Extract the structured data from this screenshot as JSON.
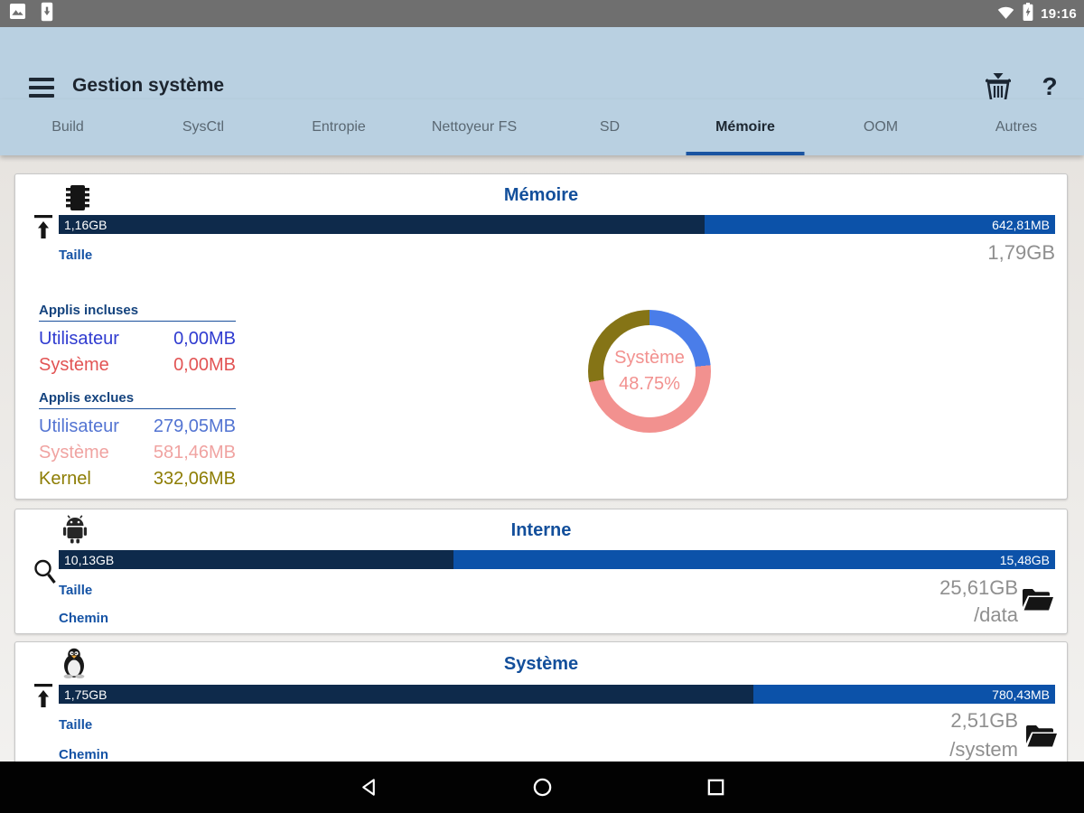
{
  "status_bar": {
    "time": "19:16",
    "left_icons": [
      "image-notification-icon",
      "usb-phone-notification-icon"
    ],
    "right_icons": [
      "wifi-icon",
      "battery-charging-icon"
    ]
  },
  "app_bar": {
    "title": "Gestion système",
    "help_label": "?",
    "actions": [
      "clean-basket-icon",
      "help-icon"
    ]
  },
  "tabs": {
    "items": [
      "Build",
      "SysCtl",
      "Entropie",
      "Nettoyeur FS",
      "SD",
      "Mémoire",
      "OOM",
      "Autres"
    ],
    "active": "Mémoire",
    "active_index": 5,
    "underline_color": "#1a54a1"
  },
  "cards": [
    {
      "title": "Mémoire",
      "header_icon": "memory-chip-icon",
      "gauge_icon": "swap-upload-icon",
      "bar": {
        "used_label": "1,16GB",
        "free_label": "642,81MB",
        "used_pct": 64.8,
        "used_color": "#0e2a4b",
        "free_color": "#0c52a9"
      },
      "size": {
        "label": "Taille",
        "value": "1,79GB"
      },
      "sections": [
        {
          "header": "Applis incluses",
          "rows": [
            {
              "label": "Utilisateur",
              "value": "0,00MB",
              "color": "#2f3bd0"
            },
            {
              "label": "Système",
              "value": "0,00MB",
              "color": "#e25454"
            }
          ]
        },
        {
          "header": "Applis exclues",
          "rows": [
            {
              "label": "Utilisateur",
              "value": "279,05MB",
              "color": "#5374d2"
            },
            {
              "label": "Système",
              "value": "581,46MB",
              "color": "#f0a3a1"
            },
            {
              "label": "Kernel",
              "value": "332,06MB",
              "color": "#8d7d04"
            }
          ]
        }
      ],
      "donut": {
        "center_label": "Système",
        "center_value": "48.75%",
        "text_color": "#f2918f"
      }
    },
    {
      "title": "Interne",
      "header_icon": "android-robot-icon",
      "gauge_icon": "magnifier-icon",
      "bar": {
        "used_label": "10,13GB",
        "free_label": "15,48GB",
        "used_pct": 39.6,
        "used_color": "#0e2a4b",
        "free_color": "#0c52a9"
      },
      "size": {
        "label": "Taille",
        "value": "25,61GB"
      },
      "path": {
        "label": "Chemin",
        "value": "/data"
      },
      "folder_icon": "open-folder-icon"
    },
    {
      "title": "Système",
      "header_icon": "tux-penguin-icon",
      "gauge_icon": "swap-upload-icon",
      "bar": {
        "used_label": "1,75GB",
        "free_label": "780,43MB",
        "used_pct": 69.7,
        "used_color": "#0e2a4b",
        "free_color": "#0c52a9"
      },
      "size": {
        "label": "Taille",
        "value": "2,51GB"
      },
      "path": {
        "label": "Chemin",
        "value": "/system"
      },
      "folder_icon": "open-folder-icon"
    }
  ],
  "chart_data": {
    "type": "pie",
    "subtype": "donut",
    "title": "Mémoire",
    "labels": [
      "Utilisateur (applis exclues)",
      "Système (applis exclues)",
      "Kernel"
    ],
    "values_mb": [
      279.05,
      581.46,
      332.06
    ],
    "colors": [
      "#4a7de9",
      "#f2918f",
      "#857416"
    ],
    "center_label": "Système",
    "center_value": "48.75%",
    "start_angle_deg": 0,
    "direction": "clockwise"
  },
  "nav_bar": {
    "icons": [
      "back-icon",
      "home-icon",
      "recents-icon"
    ]
  }
}
